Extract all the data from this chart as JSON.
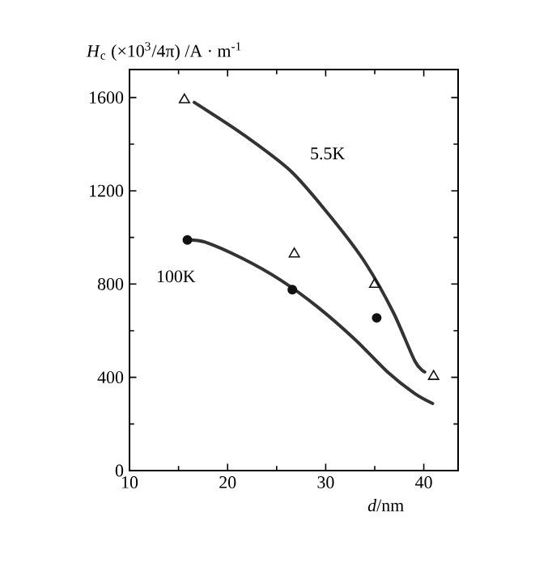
{
  "chart_data": {
    "type": "line",
    "ylabel": "*H*$_{c}$ (×10$^{3}$/4π) /A · m$^{-1}$",
    "xlabel": "*d*/nm",
    "xlim": [
      10,
      43.5
    ],
    "ylim": [
      0,
      1720
    ],
    "xticks": [
      10,
      20,
      30,
      40
    ],
    "yticks": [
      0,
      400,
      800,
      1200,
      1600
    ],
    "grid": false,
    "legend": false,
    "series": [
      {
        "name": "5.5K",
        "color": "#333333",
        "x": [
          16.6,
          21.5,
          26.5,
          30.8,
          34.1,
          36.9,
          39.1,
          40.1
        ],
        "values": [
          1579,
          1444,
          1282,
          1073,
          887,
          678,
          469,
          423
        ]
      },
      {
        "type": "scatter",
        "marker": "triangle",
        "color": "#111111",
        "x": [
          15.6,
          26.8,
          35.0,
          41.0
        ],
        "values": [
          1590,
          929,
          799,
          404
        ]
      },
      {
        "name": "100K",
        "color": "#333333",
        "x": [
          15.9,
          17.7,
          21.5,
          25.4,
          29.2,
          33.0,
          36.3,
          39.1,
          40.9
        ],
        "values": [
          989,
          980,
          910,
          817,
          701,
          562,
          423,
          330,
          288
        ]
      },
      {
        "type": "scatter",
        "marker": "circle",
        "color": "#111111",
        "x": [
          15.9,
          26.6,
          35.2
        ],
        "values": [
          989,
          776,
          655
        ]
      }
    ]
  }
}
